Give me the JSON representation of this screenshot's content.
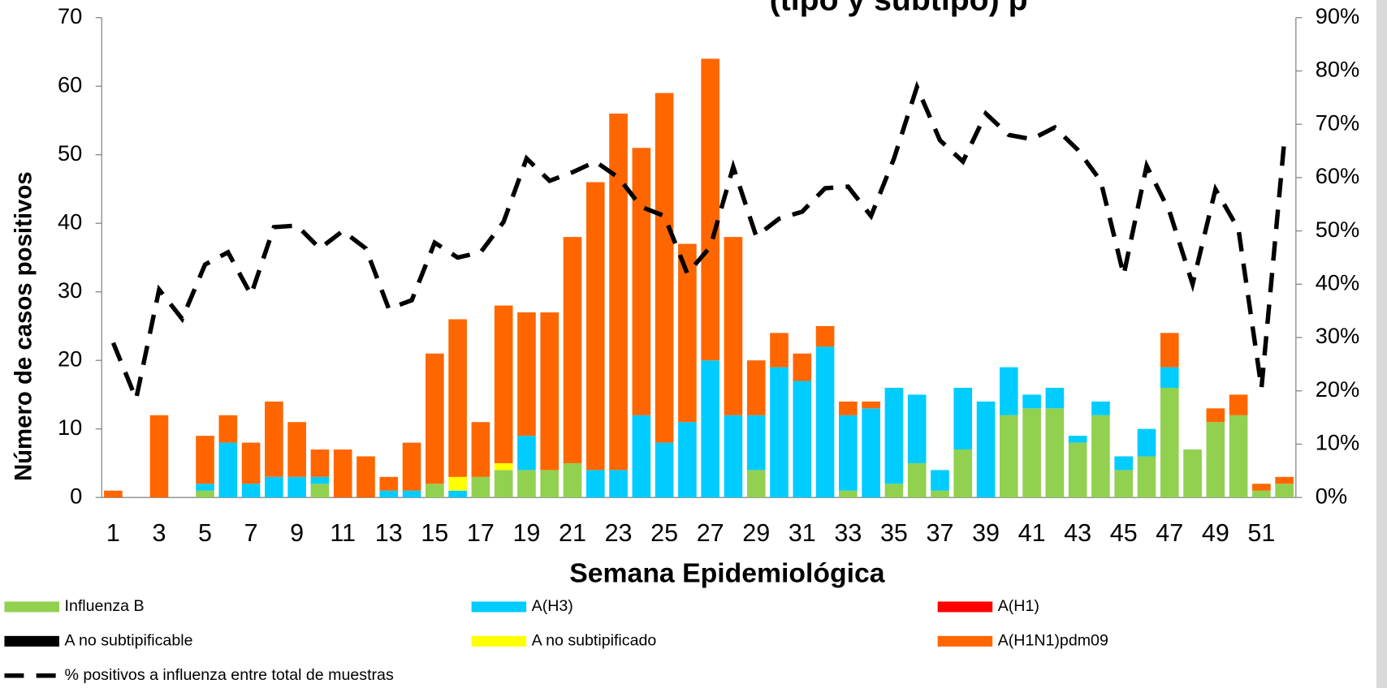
{
  "chart_data": {
    "type": "bar",
    "stacked": true,
    "title": "(tipo y subtipo) p",
    "xlabel": "Semana Epidemiológica",
    "ylabel": "Número de casos positivos",
    "categories": [
      "1",
      null,
      "3",
      null,
      "5",
      null,
      "7",
      null,
      "9",
      null,
      "11",
      null,
      "13",
      null,
      "15",
      null,
      "17",
      null,
      "19",
      null,
      "21",
      null,
      "23",
      null,
      "25",
      null,
      "27",
      null,
      "29",
      null,
      "31",
      null,
      "33",
      null,
      "35",
      null,
      "37",
      null,
      "39",
      null,
      "41",
      null,
      "43",
      null,
      "45",
      null,
      "47",
      null,
      "49",
      null,
      "51",
      null
    ],
    "ylim": [
      0,
      70
    ],
    "yticks": [
      0,
      10,
      20,
      30,
      40,
      50,
      60,
      70
    ],
    "y2lim": [
      0,
      90
    ],
    "y2ticks": [
      {
        "value": 0,
        "label": "0%"
      },
      {
        "value": 10,
        "label": "10%"
      },
      {
        "value": 20,
        "label": "20%"
      },
      {
        "value": 30,
        "label": "30%"
      },
      {
        "value": 40,
        "label": "40%"
      },
      {
        "value": 50,
        "label": "50%"
      },
      {
        "value": 60,
        "label": "60%"
      },
      {
        "value": 70,
        "label": "70%"
      },
      {
        "value": 80,
        "label": "80%"
      },
      {
        "value": 90,
        "label": "90%"
      }
    ],
    "legend": "bottom",
    "series": [
      {
        "name": "Influenza  B",
        "color": "#92d050",
        "values": [
          0,
          0,
          0,
          0,
          1,
          0,
          0,
          0,
          0,
          2,
          0,
          0,
          0,
          0,
          2,
          0,
          3,
          4,
          4,
          4,
          5,
          0,
          0,
          0,
          0,
          0,
          0,
          0,
          4,
          0,
          0,
          0,
          1,
          0,
          2,
          5,
          1,
          7,
          0,
          12,
          13,
          13,
          8,
          12,
          4,
          6,
          16,
          7,
          11,
          12,
          1,
          2
        ]
      },
      {
        "name": "A(H3)",
        "color": "#00ccff",
        "values": [
          0,
          0,
          0,
          0,
          1,
          8,
          2,
          3,
          3,
          1,
          0,
          0,
          1,
          1,
          0,
          1,
          0,
          0,
          5,
          0,
          0,
          4,
          4,
          12,
          8,
          11,
          20,
          12,
          8,
          19,
          17,
          22,
          11,
          13,
          14,
          10,
          3,
          9,
          14,
          7,
          2,
          3,
          1,
          2,
          2,
          4,
          3,
          0,
          0,
          0,
          0,
          0
        ]
      },
      {
        "name": "A(H1)",
        "color": "#ff0000",
        "values": [
          0,
          0,
          0,
          0,
          0,
          0,
          0,
          0,
          0,
          0,
          0,
          0,
          0,
          0,
          0,
          0,
          0,
          0,
          0,
          0,
          0,
          0,
          0,
          0,
          0,
          0,
          0,
          0,
          0,
          0,
          0,
          0,
          0,
          0,
          0,
          0,
          0,
          0,
          0,
          0,
          0,
          0,
          0,
          0,
          0,
          0,
          0,
          0,
          0,
          0,
          0,
          0
        ]
      },
      {
        "name": "A no subtipificable",
        "color": "#000000",
        "values": [
          0,
          0,
          0,
          0,
          0,
          0,
          0,
          0,
          0,
          0,
          0,
          0,
          0,
          0,
          0,
          0,
          0,
          0,
          0,
          0,
          0,
          0,
          0,
          0,
          0,
          0,
          0,
          0,
          0,
          0,
          0,
          0,
          0,
          0,
          0,
          0,
          0,
          0,
          0,
          0,
          0,
          0,
          0,
          0,
          0,
          0,
          0,
          0,
          0,
          0,
          0,
          0
        ]
      },
      {
        "name": "A no subtipificado",
        "color": "#ffff00",
        "values": [
          0,
          0,
          0,
          0,
          0,
          0,
          0,
          0,
          0,
          0,
          0,
          0,
          0,
          0,
          0,
          2,
          0,
          1,
          0,
          0,
          0,
          0,
          0,
          0,
          0,
          0,
          0,
          0,
          0,
          0,
          0,
          0,
          0,
          0,
          0,
          0,
          0,
          0,
          0,
          0,
          0,
          0,
          0,
          0,
          0,
          0,
          0,
          0,
          0,
          0,
          0,
          0
        ]
      },
      {
        "name": "A(H1N1)pdm09",
        "color": "#ff6600",
        "values": [
          1,
          0,
          12,
          0,
          7,
          4,
          6,
          11,
          8,
          4,
          7,
          6,
          2,
          7,
          19,
          23,
          8,
          23,
          18,
          23,
          33,
          42,
          52,
          39,
          51,
          26,
          44,
          26,
          8,
          5,
          4,
          3,
          2,
          1,
          0,
          0,
          0,
          0,
          0,
          0,
          0,
          0,
          0,
          0,
          0,
          0,
          5,
          0,
          2,
          3,
          1,
          1
        ]
      },
      {
        "name": "% positivos a influenza entre total de muestras",
        "color": "#000000",
        "type": "line",
        "axis": "y2",
        "values": [
          29,
          18.5,
          39,
          33.5,
          43.7,
          46,
          38,
          50.7,
          51,
          46.7,
          50,
          46.7,
          35.4,
          37,
          47.8,
          45,
          46,
          51.7,
          63.6,
          59.4,
          61,
          63,
          60,
          54.5,
          52.8,
          42,
          47,
          62,
          49,
          52.3,
          53.6,
          58,
          58.3,
          52.8,
          63.6,
          77,
          67,
          63,
          72,
          68,
          67.2,
          69.4,
          65.2,
          59.4,
          41.7,
          62.2,
          53.6,
          40,
          57.8,
          50.3,
          20.5,
          67
        ]
      }
    ]
  }
}
